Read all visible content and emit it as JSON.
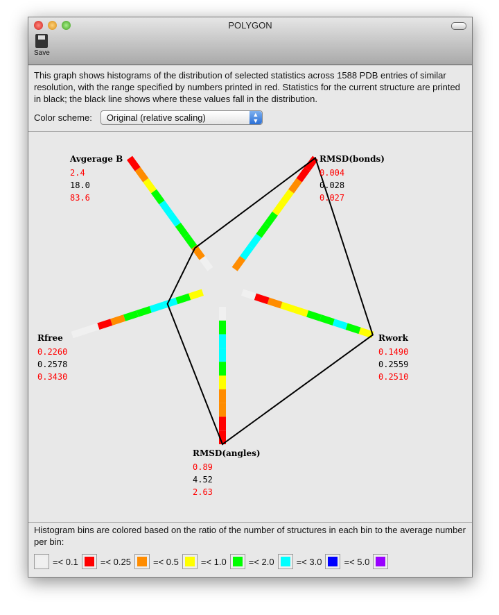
{
  "window": {
    "title": "POLYGON",
    "save_label": "Save"
  },
  "description": "This graph shows histograms of the distribution of selected statistics across 1588 PDB entries of similar resolution, with the range specified by numbers printed in red.  Statistics for the current structure are printed in black; the black line shows where these values fall in the distribution.",
  "color_scheme": {
    "label": "Color scheme:",
    "value": "Original (relative scaling)"
  },
  "colors": {
    "white": "#f0f0f0",
    "red": "#ff0000",
    "orange": "#ff8c00",
    "yellow": "#ffff00",
    "green": "#00ff00",
    "cyan": "#00ffff",
    "blue": "#0000ff",
    "purple": "#9900ff",
    "line": "#000000",
    "range": "#ff0000"
  },
  "axes": [
    {
      "name": "Avgerage B",
      "min": "2.4",
      "current": "18.0",
      "max": "83.6",
      "angle": -126,
      "polygon_fraction": 0.19,
      "bins": [
        "white",
        "orange",
        "green",
        "green",
        "cyan",
        "cyan",
        "green",
        "yellow",
        "orange",
        "red"
      ]
    },
    {
      "name": "RMSD(bonds)",
      "min": "0.004",
      "current": "0.028",
      "max": "0.027",
      "angle": -54,
      "polygon_fraction": 1.0,
      "bins": [
        "orange",
        "cyan",
        "cyan",
        "green",
        "green",
        "yellow",
        "yellow",
        "orange",
        "red",
        "red"
      ]
    },
    {
      "name": "Rwork",
      "min": "0.1490",
      "current": "0.2559",
      "max": "0.2510",
      "angle": 18,
      "polygon_fraction": 1.0,
      "bins": [
        "white",
        "red",
        "orange",
        "yellow",
        "yellow",
        "green",
        "green",
        "cyan",
        "green",
        "yellow"
      ]
    },
    {
      "name": "RMSD(angles)",
      "min": "0.89",
      "current": "4.52",
      "max": "2.63",
      "angle": 90,
      "polygon_fraction": 1.0,
      "bins": [
        "white",
        "green",
        "cyan",
        "cyan",
        "green",
        "yellow",
        "orange",
        "orange",
        "red",
        "red"
      ]
    },
    {
      "name": "Rfree",
      "min": "0.2260",
      "current": "0.2578",
      "max": "0.3430",
      "angle": 162,
      "polygon_fraction": 0.27,
      "bins": [
        "yellow",
        "green",
        "cyan",
        "cyan",
        "green",
        "green",
        "orange",
        "red",
        "white",
        "white"
      ]
    }
  ],
  "legend": {
    "text": "Histogram bins are colored based on the ratio of the number of structures in each bin to the average number per bin:",
    "items": [
      {
        "color": "white",
        "label": "=< 0.1"
      },
      {
        "color": "red",
        "label": "=< 0.25"
      },
      {
        "color": "orange",
        "label": "=< 0.5"
      },
      {
        "color": "yellow",
        "label": "=< 1.0"
      },
      {
        "color": "green",
        "label": "=< 2.0"
      },
      {
        "color": "cyan",
        "label": "=< 3.0"
      },
      {
        "color": "blue",
        "label": "=< 5.0"
      },
      {
        "color": "purple",
        "label": ""
      }
    ]
  }
}
